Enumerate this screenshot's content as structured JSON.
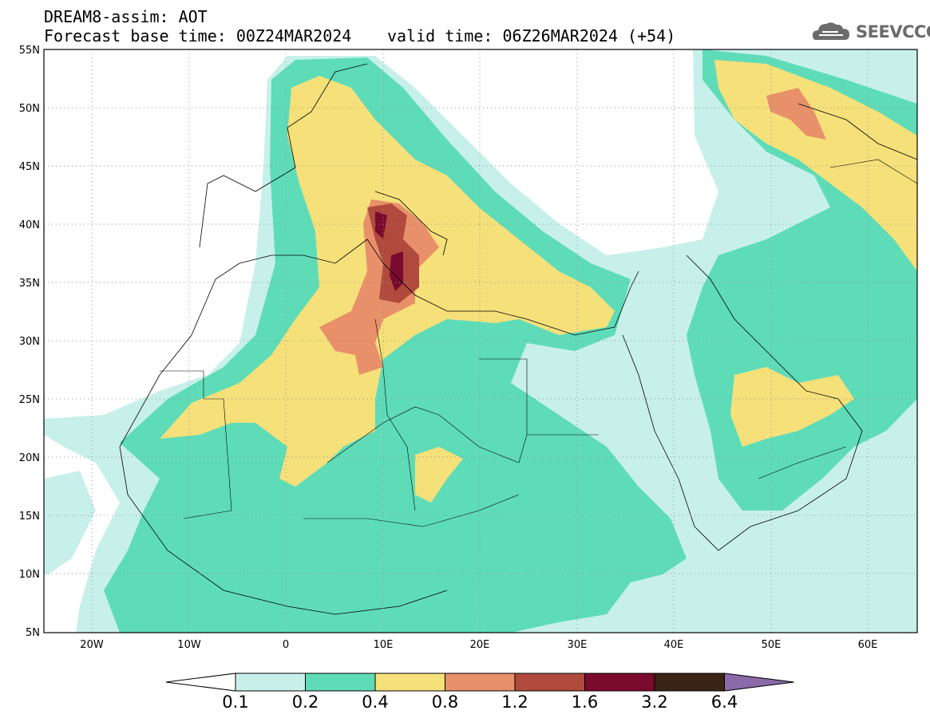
{
  "header": {
    "title": "DREAM8-assim: AOT",
    "base_time": "Forecast base time: 00Z24MAR2024",
    "valid_time": "valid time: 06Z26MAR2024 (+54)",
    "logo": "SEEVCCC"
  },
  "axes": {
    "lat_labels": [
      "55N",
      "50N",
      "45N",
      "40N",
      "35N",
      "30N",
      "25N",
      "20N",
      "15N",
      "10N",
      "5N"
    ],
    "lon_labels": [
      "20W",
      "10W",
      "0",
      "10E",
      "20E",
      "30E",
      "40E",
      "50E",
      "60E"
    ]
  },
  "colorbar": {
    "labels": [
      "0.1",
      "0.2",
      "0.4",
      "0.8",
      "1.2",
      "1.6",
      "3.2",
      "6.4"
    ],
    "colors": [
      "#ffffff",
      "#c8f0eb",
      "#5edcb8",
      "#f6e07a",
      "#e8906a",
      "#b04a3c",
      "#7a0a2e",
      "#3a2416",
      "#8a6aa8"
    ]
  },
  "map": {
    "colors": {
      "c01": "#c8f0eb",
      "c02": "#5edcb8",
      "c04": "#f6e07a",
      "c08": "#e8906a",
      "c12": "#b04a3c",
      "c16": "#7a0a2e",
      "border": "#000000",
      "grid": "#909090"
    }
  }
}
